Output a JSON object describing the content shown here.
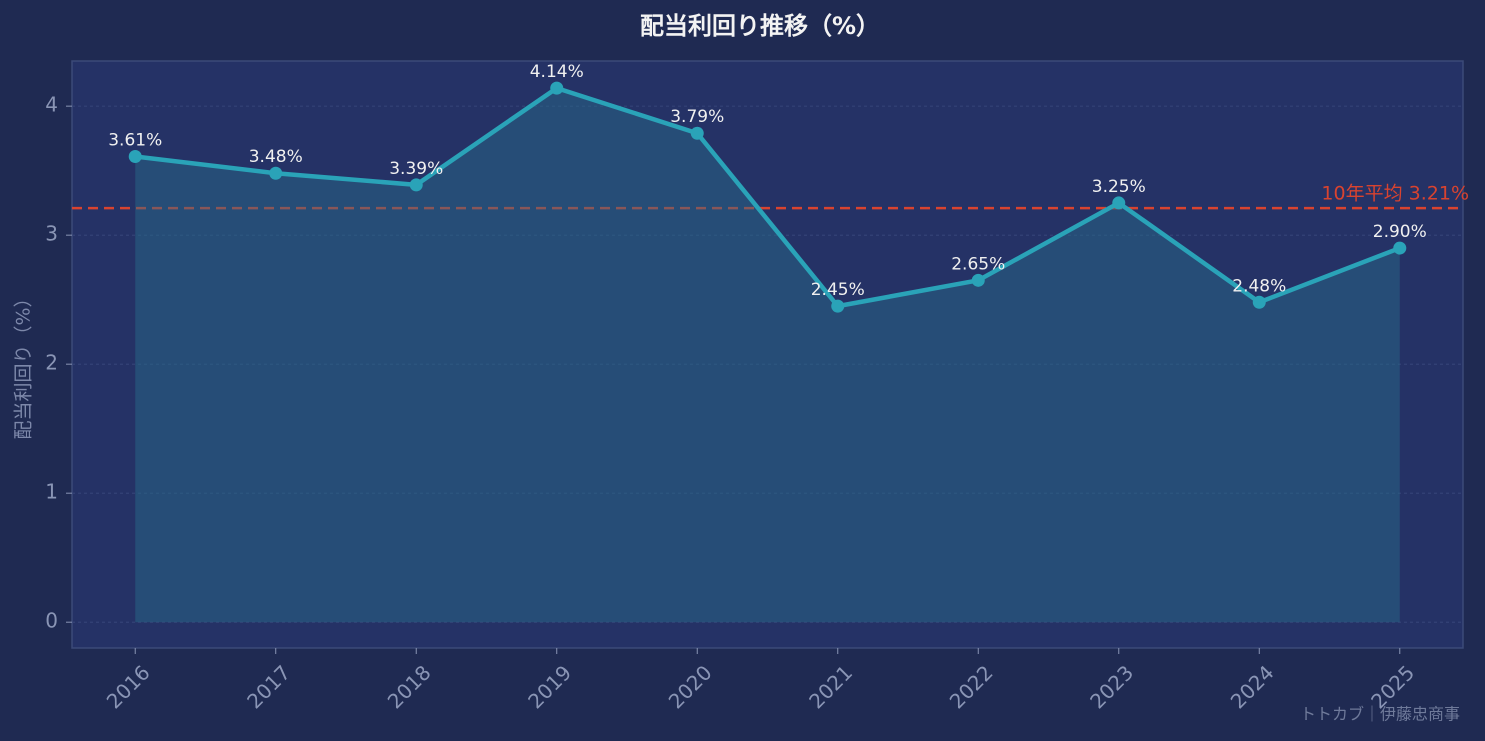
{
  "chart_data": {
    "type": "line",
    "title": "配当利回り推移（%）",
    "y_label": "配当利回り（%）",
    "categories": [
      "2016",
      "2017",
      "2018",
      "2019",
      "2020",
      "2021",
      "2022",
      "2023",
      "2024",
      "2025"
    ],
    "series": [
      {
        "name": "配当利回り",
        "color": "#2aa3b8",
        "values": [
          3.61,
          3.48,
          3.39,
          4.14,
          3.79,
          2.45,
          2.65,
          3.25,
          2.48,
          2.9
        ],
        "value_labels": [
          "3.61%",
          "3.48%",
          "3.39%",
          "4.14%",
          "3.79%",
          "2.45%",
          "2.65%",
          "3.25%",
          "2.48%",
          "2.90%"
        ]
      }
    ],
    "average": {
      "value": 3.21,
      "label": "10年平均 3.21%",
      "color": "#d9432f"
    },
    "ylim": [
      -0.2,
      4.35
    ],
    "yticks": [
      0,
      1,
      2,
      3,
      4
    ],
    "grid": true,
    "source": "トトカブ｜伊藤忠商事"
  }
}
